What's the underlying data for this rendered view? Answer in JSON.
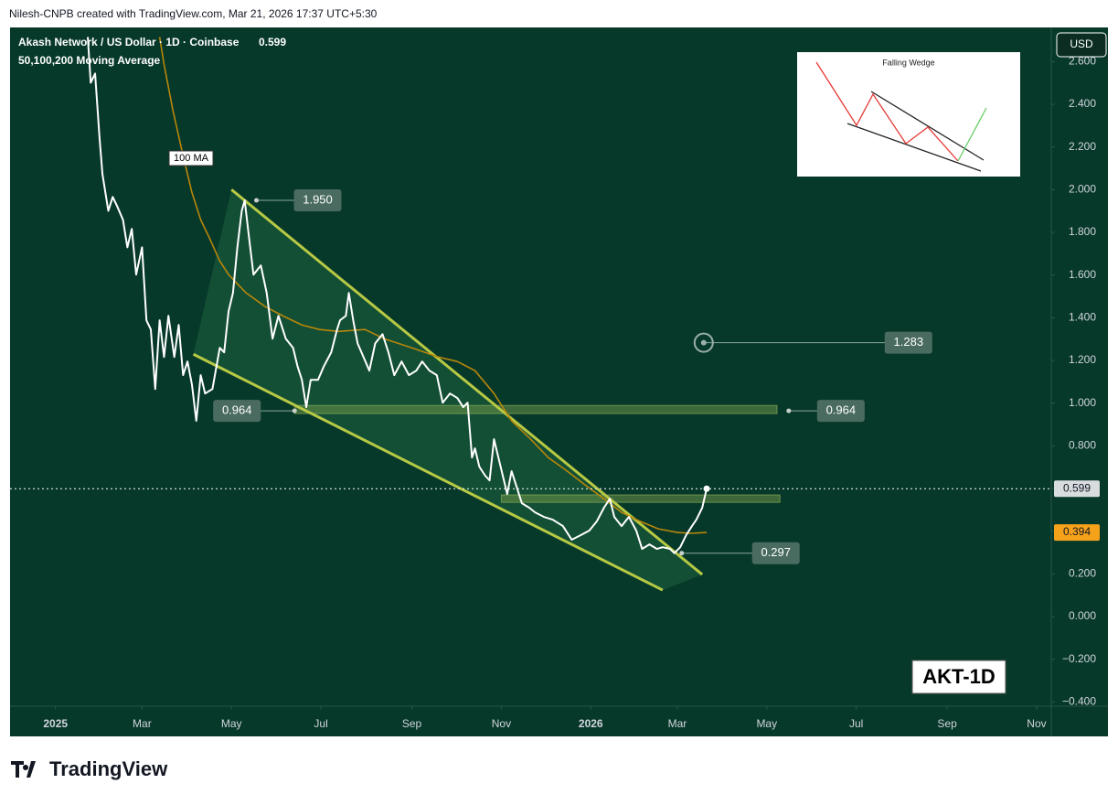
{
  "brand": "TradingView",
  "chart_data": {
    "type": "line",
    "attribution": "Nilesh-CNPB created with TradingView.com, Mar 21, 2026 17:37 UTC+5:30",
    "title": "Akash Network / US Dollar · 1D · Coinbase",
    "subtitle": "50,100,200 Moving Average",
    "currency": "USD",
    "symbol_label": "AKT-1D",
    "inset_title": "Falling Wedge",
    "xlim": [
      -31,
      679
    ],
    "xticks": [
      {
        "value": 0,
        "label": "2025"
      },
      {
        "value": 59,
        "label": "Mar"
      },
      {
        "value": 120,
        "label": "May"
      },
      {
        "value": 181,
        "label": "Jul"
      },
      {
        "value": 243,
        "label": "Sep"
      },
      {
        "value": 304,
        "label": "Nov"
      },
      {
        "value": 365,
        "label": "2026"
      },
      {
        "value": 424,
        "label": "Mar"
      },
      {
        "value": 485,
        "label": "May"
      },
      {
        "value": 546,
        "label": "Jul"
      },
      {
        "value": 608,
        "label": "Sep"
      },
      {
        "value": 669,
        "label": "Nov"
      }
    ],
    "ylim": [
      -0.42,
      2.76
    ],
    "yticks": [
      {
        "value": 2.6,
        "label": "2.600"
      },
      {
        "value": 2.4,
        "label": "2.400"
      },
      {
        "value": 2.2,
        "label": "2.200"
      },
      {
        "value": 2,
        "label": "2.000"
      },
      {
        "value": 1.8,
        "label": "1.800"
      },
      {
        "value": 1.6,
        "label": "1.600"
      },
      {
        "value": 1.4,
        "label": "1.400"
      },
      {
        "value": 1.2,
        "label": "1.200"
      },
      {
        "value": 1,
        "label": "1.000"
      },
      {
        "value": 0.8,
        "label": "0.800"
      },
      {
        "value": 0.6,
        "label": "0.600"
      },
      {
        "value": 0.4,
        "label": "0.400"
      },
      {
        "value": 0.2,
        "label": "0.200"
      },
      {
        "value": 0,
        "label": "0.000"
      },
      {
        "value": -0.2,
        "label": "−0.200"
      },
      {
        "value": -0.4,
        "label": "−0.400"
      }
    ],
    "grid": false,
    "series": [
      {
        "color": "#ffffff",
        "x": [
          22,
          24,
          27,
          30,
          32,
          36,
          39,
          42,
          46,
          49,
          52,
          55,
          59,
          62,
          65,
          68,
          71,
          74,
          77,
          81,
          84,
          87,
          90,
          93,
          96,
          99,
          102,
          107,
          112,
          115,
          118,
          121,
          124,
          127,
          129,
          132,
          135,
          140,
          144,
          148,
          152,
          157,
          162,
          165,
          168,
          171,
          174,
          179,
          183,
          188,
          192,
          194,
          198,
          200,
          203,
          206,
          210,
          214,
          218,
          223,
          227,
          231,
          236,
          241,
          246,
          250,
          255,
          260,
          264,
          269,
          274,
          278,
          281,
          284,
          286,
          289,
          293,
          296,
          299,
          302,
          305,
          308,
          311,
          314,
          318,
          323,
          327,
          333,
          339,
          346,
          352,
          358,
          364,
          369,
          374,
          378,
          381,
          386,
          391,
          396,
          400,
          405,
          410,
          414,
          419,
          422,
          426,
          430,
          434,
          437,
          441,
          444
        ],
        "values": [
          2.715,
          2.501,
          2.544,
          2.244,
          2.073,
          1.901,
          1.966,
          1.923,
          1.859,
          1.73,
          1.816,
          1.602,
          1.73,
          1.388,
          1.345,
          1.066,
          1.388,
          1.216,
          1.409,
          1.216,
          1.366,
          1.131,
          1.195,
          1.088,
          0.917,
          1.131,
          1.045,
          1.066,
          1.259,
          1.238,
          1.43,
          1.516,
          1.73,
          1.901,
          1.95,
          1.773,
          1.602,
          1.645,
          1.516,
          1.302,
          1.409,
          1.302,
          1.259,
          1.173,
          1.109,
          0.981,
          1.109,
          1.109,
          1.173,
          1.238,
          1.345,
          1.388,
          1.409,
          1.516,
          1.388,
          1.28,
          1.216,
          1.152,
          1.28,
          1.323,
          1.238,
          1.131,
          1.195,
          1.131,
          1.152,
          1.195,
          1.152,
          1.131,
          1.002,
          1.045,
          1.024,
          0.981,
          1.002,
          0.745,
          0.788,
          0.702,
          0.66,
          0.638,
          0.831,
          0.745,
          0.66,
          0.574,
          0.681,
          0.617,
          0.531,
          0.51,
          0.488,
          0.467,
          0.454,
          0.424,
          0.36,
          0.381,
          0.403,
          0.445,
          0.51,
          0.552,
          0.467,
          0.424,
          0.467,
          0.403,
          0.317,
          0.338,
          0.317,
          0.325,
          0.317,
          0.297,
          0.325,
          0.381,
          0.424,
          0.454,
          0.51,
          0.599
        ]
      },
      {
        "name": "100 MA",
        "color": "#b8860b",
        "x": [
          71,
          74,
          80,
          87,
          93,
          99,
          105,
          112,
          118,
          130,
          143,
          155,
          168,
          180,
          193,
          211,
          224,
          243,
          261,
          274,
          286,
          299,
          311,
          324,
          336,
          349,
          361,
          374,
          386,
          399,
          411,
          424,
          433,
          444
        ],
        "values": [
          2.715,
          2.587,
          2.373,
          2.158,
          1.987,
          1.859,
          1.773,
          1.666,
          1.602,
          1.516,
          1.452,
          1.409,
          1.366,
          1.345,
          1.336,
          1.345,
          1.302,
          1.259,
          1.216,
          1.195,
          1.152,
          1.045,
          0.917,
          0.831,
          0.745,
          0.681,
          0.617,
          0.552,
          0.488,
          0.445,
          0.411,
          0.394,
          0.39,
          0.394
        ]
      }
    ],
    "trendlines": [
      {
        "x": [
          120,
          441
        ],
        "values": [
          2.0,
          0.197
        ]
      },
      {
        "x": [
          94,
          414
        ],
        "values": [
          1.229,
          0.124
        ]
      }
    ],
    "zones": [
      {
        "x": [
          163,
          492
        ],
        "values": [
          0.951,
          0.989
        ]
      },
      {
        "x": [
          304,
          494
        ],
        "values": [
          0.535,
          0.57
        ]
      }
    ],
    "annotations": [
      {
        "text": "1.950",
        "value": 1.95,
        "x": 137
      },
      {
        "text": "0.964",
        "value": 0.964,
        "x": 163
      },
      {
        "text": "0.964",
        "value": 0.964,
        "x": 500
      },
      {
        "text": "1.283",
        "value": 1.283,
        "x": 442
      },
      {
        "text": "0.297",
        "value": 0.297,
        "x": 427
      }
    ]
  }
}
